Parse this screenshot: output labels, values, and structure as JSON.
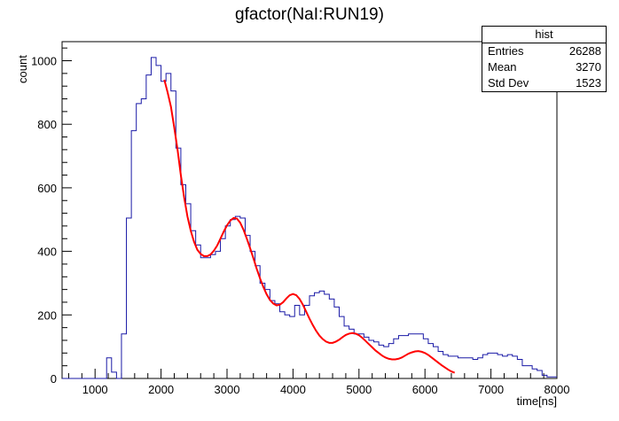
{
  "chart_data": {
    "type": "step",
    "title": "gfactor(NaI:RUN19)",
    "xlabel": "time[ns]",
    "ylabel": "count",
    "xlim": [
      500,
      8000
    ],
    "ylim": [
      0,
      1060
    ],
    "xticks": [
      1000,
      2000,
      3000,
      4000,
      5000,
      6000,
      7000,
      8000
    ],
    "yticks": [
      0,
      200,
      400,
      600,
      800,
      1000
    ],
    "grid": false,
    "bin_width": 75,
    "histogram": {
      "name": "hist",
      "color": "#1a1aa6",
      "bin_starts": [
        500,
        575,
        650,
        725,
        800,
        875,
        950,
        1025,
        1100,
        1175,
        1250,
        1325,
        1400,
        1475,
        1550,
        1625,
        1700,
        1775,
        1850,
        1925,
        2000,
        2075,
        2150,
        2225,
        2300,
        2375,
        2450,
        2525,
        2600,
        2675,
        2750,
        2825,
        2900,
        2975,
        3050,
        3125,
        3200,
        3275,
        3350,
        3425,
        3500,
        3575,
        3650,
        3725,
        3800,
        3875,
        3950,
        4025,
        4100,
        4175,
        4250,
        4325,
        4400,
        4475,
        4550,
        4625,
        4700,
        4775,
        4850,
        4925,
        5000,
        5075,
        5150,
        5225,
        5300,
        5375,
        5450,
        5525,
        5600,
        5675,
        5750,
        5825,
        5900,
        5975,
        6050,
        6125,
        6200,
        6275,
        6350,
        6425,
        6500,
        6575,
        6650,
        6725,
        6800,
        6875,
        6950,
        7025,
        7100,
        7175,
        7250,
        7325,
        7400,
        7475,
        7550,
        7625,
        7700,
        7775,
        7850,
        7925
      ],
      "counts": [
        0,
        0,
        0,
        0,
        0,
        0,
        0,
        0,
        0,
        65,
        20,
        0,
        140,
        505,
        780,
        865,
        880,
        955,
        1010,
        985,
        935,
        960,
        905,
        725,
        610,
        550,
        465,
        420,
        380,
        380,
        390,
        400,
        440,
        480,
        500,
        510,
        505,
        450,
        400,
        355,
        300,
        280,
        245,
        235,
        210,
        200,
        195,
        230,
        200,
        230,
        260,
        270,
        275,
        265,
        250,
        225,
        195,
        165,
        155,
        140,
        140,
        130,
        120,
        115,
        105,
        100,
        110,
        125,
        135,
        135,
        140,
        140,
        140,
        125,
        110,
        100,
        85,
        75,
        70,
        70,
        65,
        65,
        65,
        60,
        65,
        75,
        80,
        80,
        75,
        70,
        75,
        70,
        60,
        40,
        40,
        30,
        25,
        10,
        5,
        5
      ]
    },
    "fit": {
      "name": "fit",
      "color": "#ff0000",
      "x": [
        2050,
        2100,
        2150,
        2200,
        2250,
        2300,
        2350,
        2400,
        2450,
        2500,
        2550,
        2600,
        2650,
        2700,
        2750,
        2800,
        2850,
        2900,
        2950,
        3000,
        3050,
        3100,
        3150,
        3200,
        3250,
        3300,
        3350,
        3400,
        3450,
        3500,
        3550,
        3600,
        3650,
        3700,
        3750,
        3800,
        3850,
        3900,
        3950,
        4000,
        4050,
        4100,
        4150,
        4200,
        4250,
        4300,
        4350,
        4400,
        4450,
        4500,
        4550,
        4600,
        4650,
        4700,
        4750,
        4800,
        4850,
        4900,
        4950,
        5000,
        5050,
        5100,
        5150,
        5200,
        5250,
        5300,
        5350,
        5400,
        5450,
        5500,
        5550,
        5600,
        5650,
        5700,
        5750,
        5800,
        5850,
        5900,
        5950,
        6000,
        6050,
        6100,
        6150,
        6200,
        6250,
        6300,
        6350,
        6400,
        6450
      ],
      "y": [
        940,
        900,
        855,
        790,
        720,
        640,
        570,
        510,
        465,
        430,
        405,
        392,
        385,
        385,
        390,
        402,
        418,
        440,
        462,
        482,
        497,
        505,
        503,
        490,
        468,
        440,
        410,
        378,
        345,
        315,
        288,
        265,
        247,
        236,
        230,
        232,
        240,
        252,
        262,
        266,
        262,
        250,
        232,
        210,
        188,
        168,
        150,
        135,
        124,
        116,
        112,
        112,
        116,
        122,
        130,
        137,
        141,
        143,
        141,
        136,
        128,
        118,
        108,
        98,
        88,
        80,
        72,
        66,
        62,
        60,
        60,
        62,
        66,
        72,
        78,
        82,
        85,
        86,
        84,
        80,
        74,
        66,
        58,
        50,
        42,
        35,
        28,
        22,
        18
      ]
    },
    "legend": "top-right"
  },
  "stats": {
    "title": "hist",
    "rows": [
      {
        "label": "Entries",
        "value": "26288"
      },
      {
        "label": "Mean",
        "value": "3270"
      },
      {
        "label": "Std Dev",
        "value": "1523"
      }
    ]
  }
}
